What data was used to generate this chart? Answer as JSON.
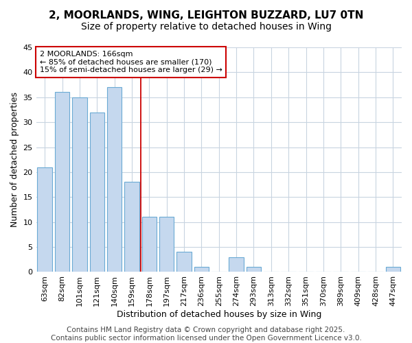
{
  "title1": "2, MOORLANDS, WING, LEIGHTON BUZZARD, LU7 0TN",
  "title2": "Size of property relative to detached houses in Wing",
  "xlabel": "Distribution of detached houses by size in Wing",
  "ylabel": "Number of detached properties",
  "categories": [
    "63sqm",
    "82sqm",
    "101sqm",
    "121sqm",
    "140sqm",
    "159sqm",
    "178sqm",
    "197sqm",
    "217sqm",
    "236sqm",
    "255sqm",
    "274sqm",
    "293sqm",
    "313sqm",
    "332sqm",
    "351sqm",
    "370sqm",
    "389sqm",
    "409sqm",
    "428sqm",
    "447sqm"
  ],
  "values": [
    21,
    36,
    35,
    32,
    37,
    18,
    11,
    11,
    4,
    1,
    0,
    3,
    1,
    0,
    0,
    0,
    0,
    0,
    0,
    0,
    1
  ],
  "bar_color": "#c5d8ee",
  "bar_edge_color": "#6aaad4",
  "vline_color": "#cc0000",
  "vline_x": 5.5,
  "annotation_text": "2 MOORLANDS: 166sqm\n← 85% of detached houses are smaller (170)\n15% of semi-detached houses are larger (29) →",
  "annotation_box_facecolor": "#ffffff",
  "annotation_box_edgecolor": "#cc0000",
  "ylim": [
    0,
    45
  ],
  "yticks": [
    0,
    5,
    10,
    15,
    20,
    25,
    30,
    35,
    40,
    45
  ],
  "footer_text": "Contains HM Land Registry data © Crown copyright and database right 2025.\nContains public sector information licensed under the Open Government Licence v3.0.",
  "fig_background_color": "#ffffff",
  "plot_background_color": "#ffffff",
  "grid_color": "#c8d4e0",
  "title_fontsize": 11,
  "subtitle_fontsize": 10,
  "axis_label_fontsize": 9,
  "tick_fontsize": 8,
  "annotation_fontsize": 8,
  "footer_fontsize": 7.5
}
